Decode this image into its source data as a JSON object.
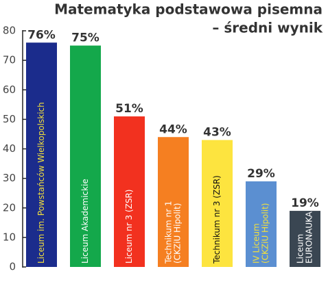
{
  "chart_data": {
    "type": "bar",
    "title": [
      "Matematyka podstawowa pisemna",
      "– średni wynik"
    ],
    "categories": [
      [
        "Liceum im. Powstańców Wielkopolskich"
      ],
      [
        "Liceum Akademickie"
      ],
      [
        "Liceum nr 3 (ZSR)"
      ],
      [
        "Technikum nr 1",
        "(CKZiU Hipolit)"
      ],
      [
        "Technikum nr 3 (ZSR)"
      ],
      [
        "IV Liceum",
        "(CKZiU Hipolit)"
      ],
      [
        "Liceum",
        "EURONAUKA"
      ]
    ],
    "values": [
      76,
      75,
      51,
      44,
      43,
      29,
      19
    ],
    "value_labels": [
      "76%",
      "75%",
      "51%",
      "44%",
      "43%",
      "29%",
      "19%"
    ],
    "colors": [
      "#1b2c8c",
      "#14a84b",
      "#f2311f",
      "#f57f21",
      "#fde43f",
      "#5b8fd1",
      "#3a4652"
    ],
    "label_colors": [
      "#f3e03c",
      "#ffffff",
      "#ffffff",
      "#ffffff",
      "#111111",
      "#f3e03c",
      "#ffffff"
    ],
    "ylim": [
      0,
      80
    ],
    "yticks": [
      0,
      10,
      20,
      30,
      40,
      50,
      60,
      70,
      80
    ]
  }
}
